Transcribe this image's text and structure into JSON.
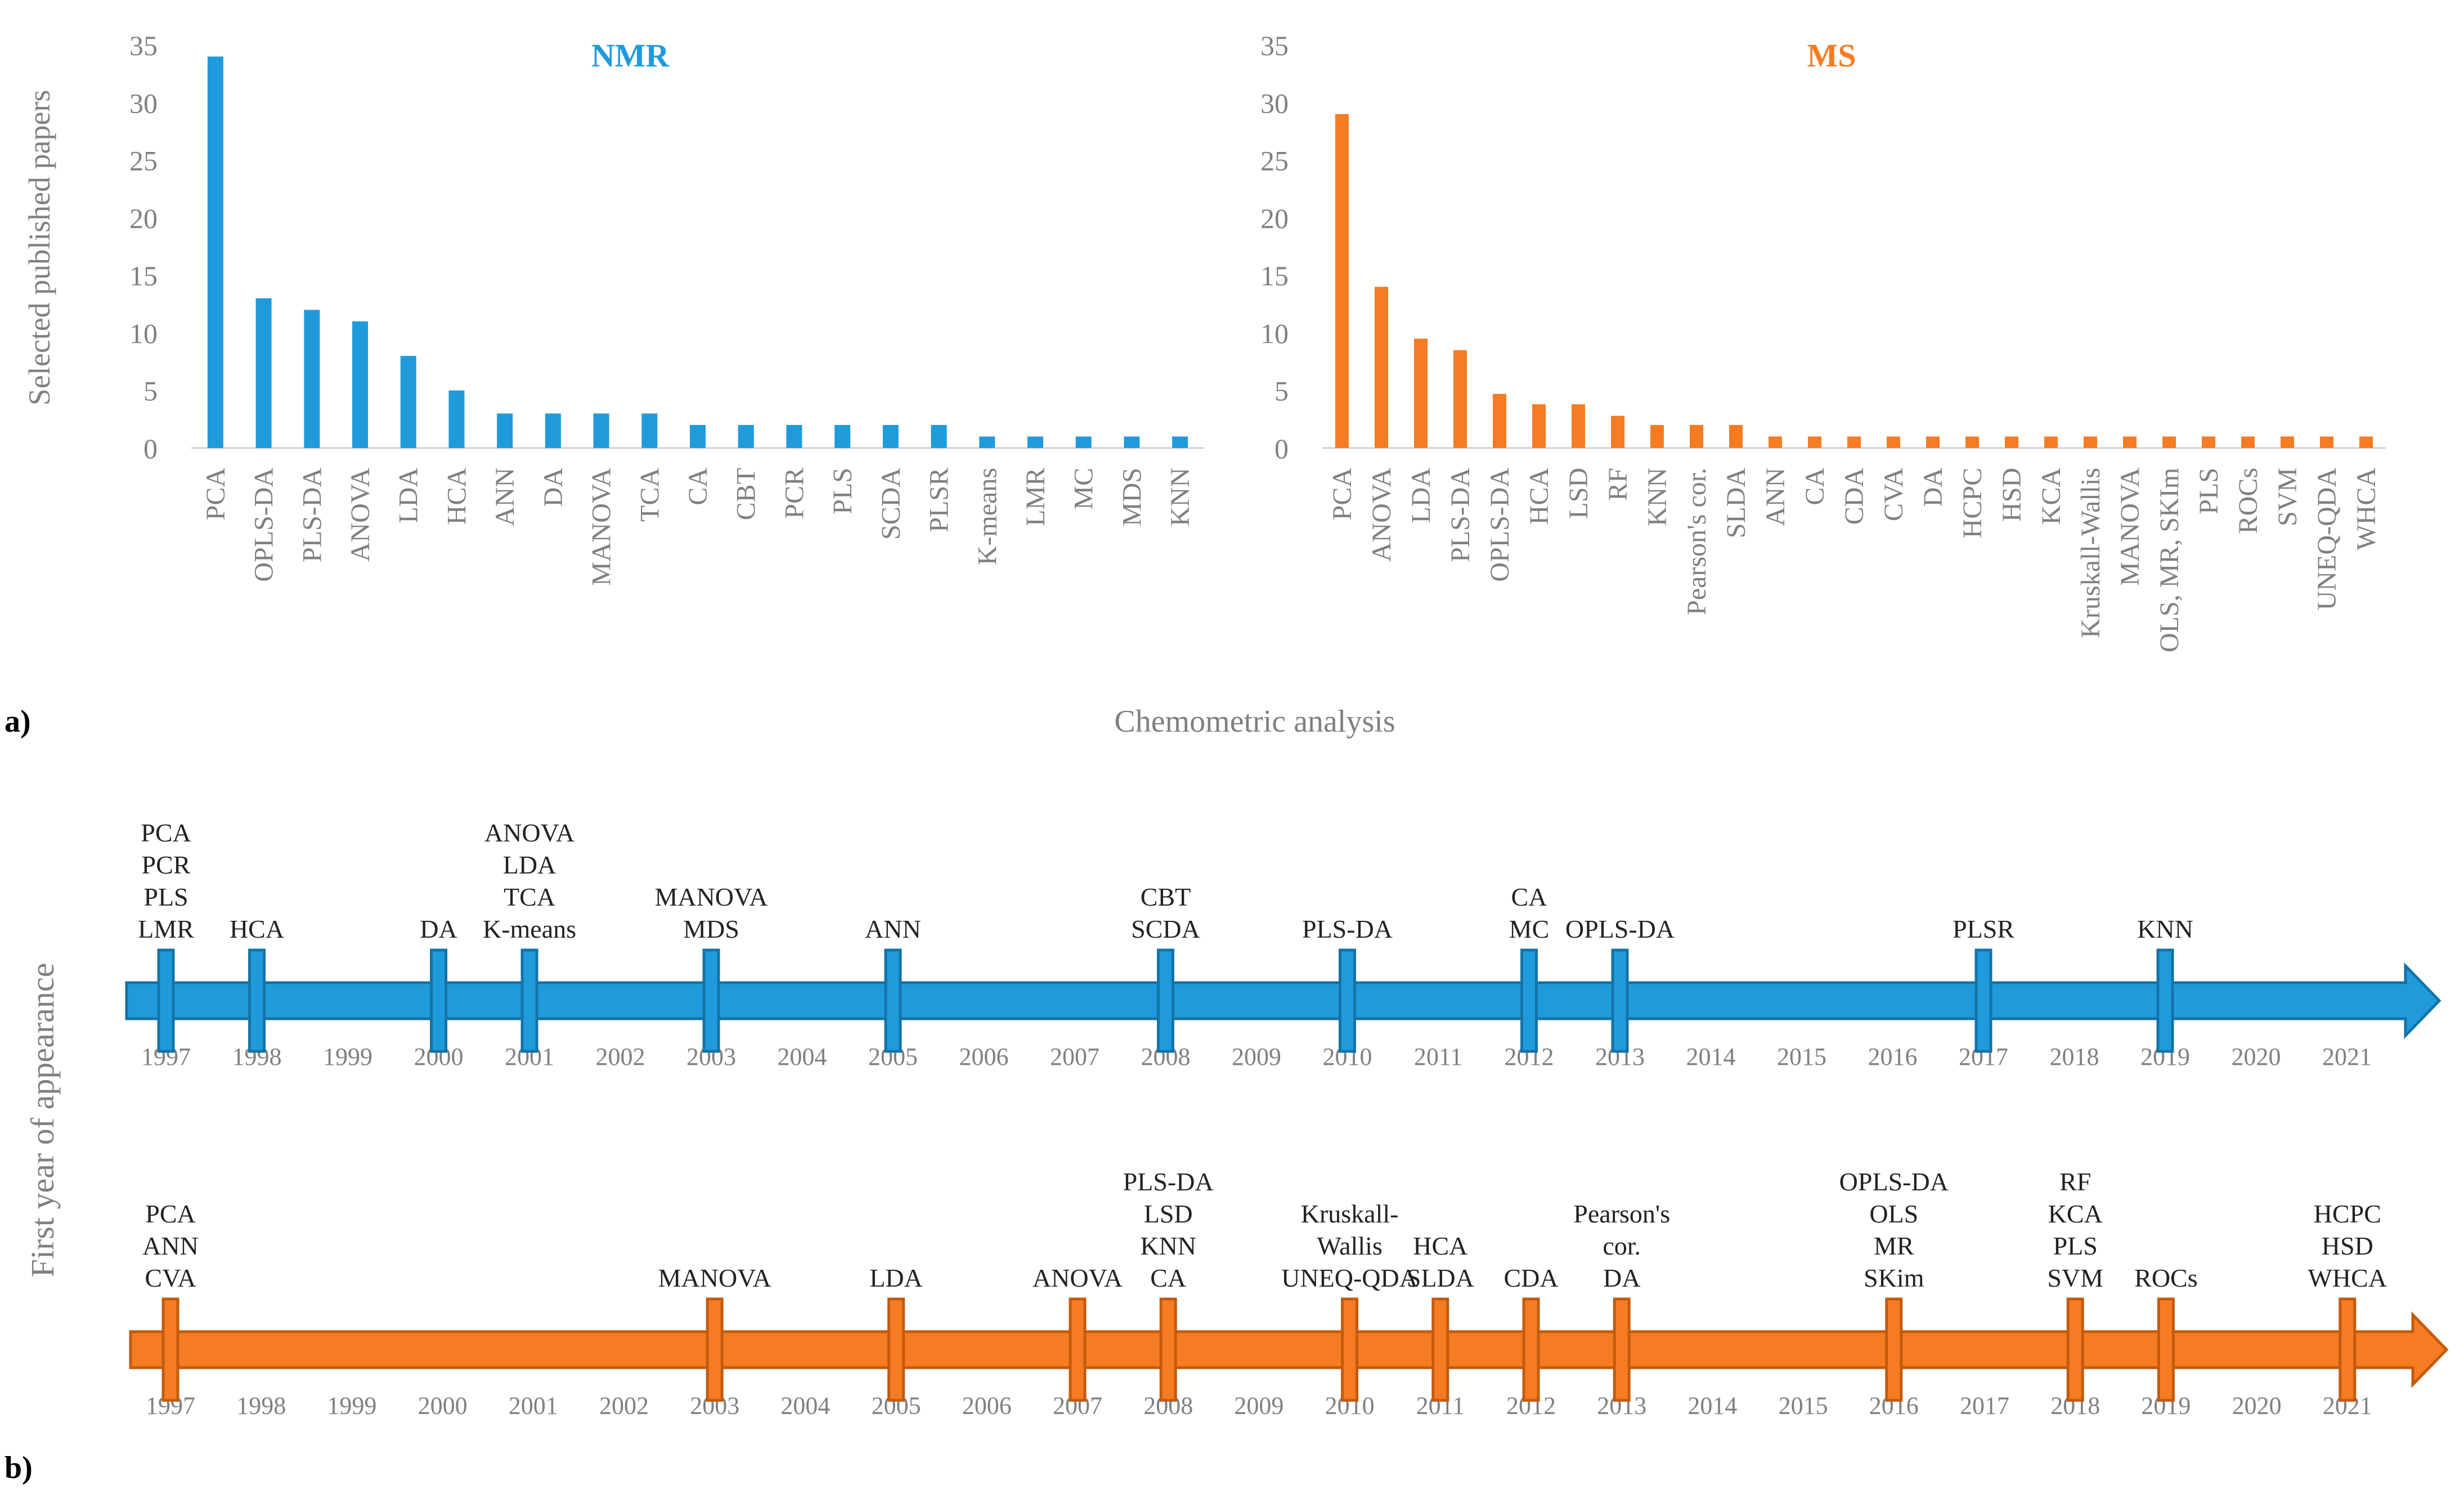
{
  "panel_labels": {
    "a": "a)",
    "b": "b)"
  },
  "shared": {
    "ylabel": "Selected published papers",
    "xlabel": "Chemometric analysis",
    "timeline_ylabel": "First year of appearance"
  },
  "colors": {
    "nmr": "#1f9bdc",
    "ms": "#f57c22",
    "nmr_dark": "#1473a6",
    "ms_dark": "#c45a0d",
    "grid_text": "#808080"
  },
  "chart_data": [
    {
      "type": "bar",
      "title": "NMR",
      "ylabel": "Selected published papers",
      "xlabel": "Chemometric analysis",
      "ylim": [
        0,
        35
      ],
      "yticks": [
        "0",
        "5",
        "10",
        "15",
        "20",
        "25",
        "30",
        "35"
      ],
      "categories": [
        "PCA",
        "OPLS-DA",
        "PLS-DA",
        "ANOVA",
        "LDA",
        "HCA",
        "ANN",
        "DA",
        "MANOVA",
        "TCA",
        "CA",
        "CBT",
        "PCR",
        "PLS",
        "SCDA",
        "PLSR",
        "K-means",
        "LMR",
        "MC",
        "MDS",
        "KNN"
      ],
      "values": [
        34,
        13,
        12,
        11,
        8,
        5,
        3,
        3,
        3,
        3,
        2,
        2,
        2,
        2,
        2,
        2,
        1,
        1,
        1,
        1,
        1
      ]
    },
    {
      "type": "bar",
      "title": "MS",
      "ylabel": "",
      "xlabel": "Chemometric analysis",
      "ylim": [
        0,
        35
      ],
      "yticks": [
        "0",
        "5",
        "10",
        "15",
        "20",
        "25",
        "30",
        "35"
      ],
      "categories": [
        "PCA",
        "ANOVA",
        "LDA",
        "PLS-DA",
        "OPLS-DA",
        "HCA",
        "LSD",
        "RF",
        "KNN",
        "Pearson's cor.",
        "SLDA",
        "ANN",
        "CA",
        "CDA",
        "CVA",
        "DA",
        "HCPC",
        "HSD",
        "KCA",
        "Kruskall-Wallis",
        "MANOVA",
        "OLS, MR, SKIm",
        "PLS",
        "ROCs",
        "SVM",
        "UNEQ-QDA",
        "WHCA"
      ],
      "values": [
        29,
        14,
        9.5,
        8.5,
        4.7,
        3.8,
        3.8,
        2.8,
        2,
        2,
        2,
        1,
        1,
        1,
        1,
        1,
        1,
        1,
        1,
        1,
        1,
        1,
        1,
        1,
        1,
        1,
        1
      ]
    },
    {
      "type": "timeline",
      "title": "NMR first year of appearance",
      "years": [
        "1997",
        "1998",
        "1999",
        "2000",
        "2001",
        "2002",
        "2003",
        "2004",
        "2005",
        "2006",
        "2007",
        "2008",
        "2009",
        "2010",
        "2011",
        "2012",
        "2013",
        "2014",
        "2015",
        "2016",
        "2017",
        "2018",
        "2019",
        "2020",
        "2021"
      ],
      "events": [
        {
          "year": 1997,
          "labels": [
            "PCA",
            "PCR",
            "PLS",
            "LMR"
          ]
        },
        {
          "year": 1998,
          "labels": [
            "HCA"
          ]
        },
        {
          "year": 2000,
          "labels": [
            "DA"
          ]
        },
        {
          "year": 2001,
          "labels": [
            "ANOVA",
            "LDA",
            "TCA",
            "K-means"
          ]
        },
        {
          "year": 2003,
          "labels": [
            "MANOVA",
            "MDS"
          ]
        },
        {
          "year": 2005,
          "labels": [
            "ANN"
          ]
        },
        {
          "year": 2008,
          "labels": [
            "CBT",
            "SCDA"
          ]
        },
        {
          "year": 2010,
          "labels": [
            "PLS-DA"
          ]
        },
        {
          "year": 2012,
          "labels": [
            "CA",
            "MC"
          ]
        },
        {
          "year": 2013,
          "labels": [
            "OPLS-DA"
          ]
        },
        {
          "year": 2017,
          "labels": [
            "PLSR"
          ]
        },
        {
          "year": 2019,
          "labels": [
            "KNN"
          ]
        }
      ]
    },
    {
      "type": "timeline",
      "title": "MS first year of appearance",
      "years": [
        "1997",
        "1998",
        "1999",
        "2000",
        "2001",
        "2002",
        "2003",
        "2004",
        "2005",
        "2006",
        "2007",
        "2008",
        "2009",
        "2010",
        "2011",
        "2012",
        "2013",
        "2014",
        "2015",
        "2016",
        "2017",
        "2018",
        "2019",
        "2020",
        "2021"
      ],
      "events": [
        {
          "year": 1997,
          "labels": [
            "PCA",
            "ANN",
            "CVA"
          ]
        },
        {
          "year": 2003,
          "labels": [
            "MANOVA"
          ]
        },
        {
          "year": 2005,
          "labels": [
            "LDA"
          ]
        },
        {
          "year": 2007,
          "labels": [
            "ANOVA"
          ]
        },
        {
          "year": 2008,
          "labels": [
            "PLS-DA",
            "LSD",
            "KNN",
            "CA"
          ]
        },
        {
          "year": 2010,
          "labels": [
            "Kruskall-",
            "Wallis",
            "UNEQ-QDA"
          ]
        },
        {
          "year": 2011,
          "labels": [
            "HCA",
            "SLDA"
          ]
        },
        {
          "year": 2012,
          "labels": [
            "CDA"
          ]
        },
        {
          "year": 2013,
          "labels": [
            "Pearson's",
            "cor.",
            "DA"
          ]
        },
        {
          "year": 2016,
          "labels": [
            "OPLS-DA",
            "OLS",
            "MR",
            "SKim"
          ]
        },
        {
          "year": 2018,
          "labels": [
            "RF",
            "KCA",
            "PLS",
            "SVM"
          ]
        },
        {
          "year": 2019,
          "labels": [
            "ROCs"
          ]
        },
        {
          "year": 2021,
          "labels": [
            "HCPC",
            "HSD",
            "WHCA"
          ]
        }
      ]
    }
  ]
}
